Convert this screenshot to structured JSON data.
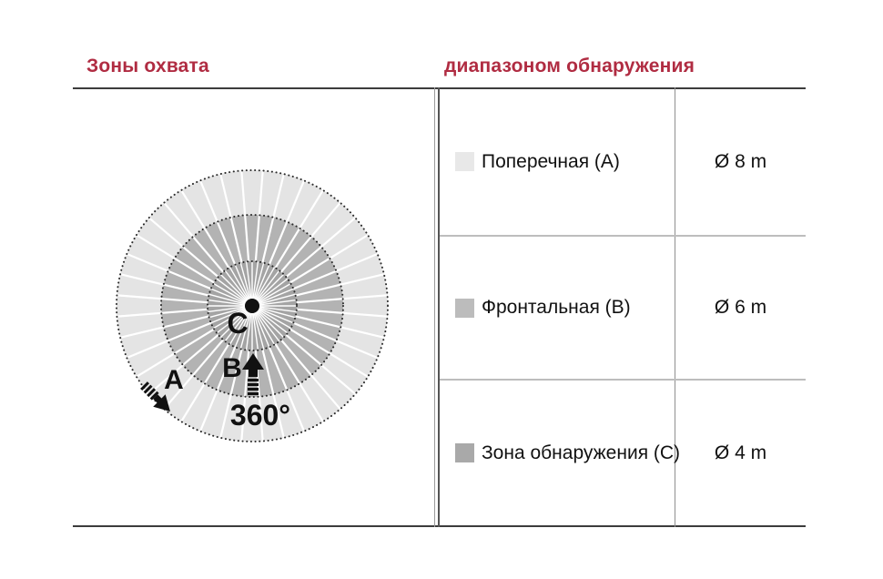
{
  "accent_color": "#b02c42",
  "headers": {
    "left": "Зоны охвата",
    "right": "диапазоном обнаружения"
  },
  "diagram": {
    "labels": {
      "a": "A",
      "b": "B",
      "c": "C",
      "rotation": "360°"
    },
    "zones": {
      "outer_color": "#e4e4e4",
      "middle_color": "#b3b3b3",
      "inner_color": "#a4a4a4"
    }
  },
  "table": {
    "rows": [
      {
        "swatch_color": "#e8e8e8",
        "zone": "Поперечная (A)",
        "diameter": "Ø 8 m"
      },
      {
        "swatch_color": "#bcbcbc",
        "zone": "Фронтальная (B)",
        "diameter": "Ø 6 m"
      },
      {
        "swatch_color": "#a9a9a9",
        "zone": "Зона обнаружения (C)",
        "diameter": "Ø 4 m"
      }
    ]
  }
}
